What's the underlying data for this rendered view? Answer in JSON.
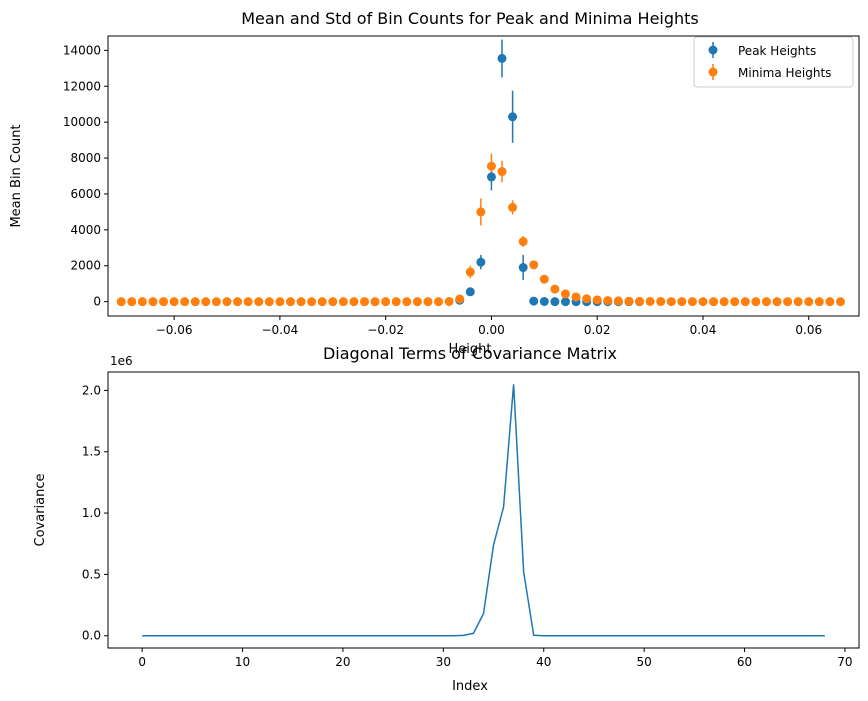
{
  "chart_data": [
    {
      "type": "scatter",
      "title": "Mean and Std of Bin Counts for Peak and Minima Heights",
      "xlabel": "Height",
      "ylabel": "Mean Bin Count",
      "xlim": [
        -0.0725,
        0.0695
      ],
      "ylim": [
        -800,
        14800
      ],
      "xticks": [
        -0.06,
        -0.04,
        -0.02,
        0.0,
        0.02,
        0.04,
        0.06
      ],
      "xtick_labels": [
        "−0.06",
        "−0.04",
        "−0.02",
        "0.00",
        "0.02",
        "0.04",
        "0.06"
      ],
      "yticks": [
        0,
        2000,
        4000,
        6000,
        8000,
        10000,
        12000,
        14000
      ],
      "ytick_labels": [
        "0",
        "2000",
        "4000",
        "6000",
        "8000",
        "10000",
        "12000",
        "14000"
      ],
      "grid": false,
      "legend": "top-right",
      "series": [
        {
          "name": "Peak Heights",
          "color": "#1f77b4",
          "points": [
            {
              "x": -0.006,
              "y": 80,
              "err": 40
            },
            {
              "x": -0.004,
              "y": 550,
              "err": 120
            },
            {
              "x": -0.002,
              "y": 2200,
              "err": 400
            },
            {
              "x": 0.0,
              "y": 6950,
              "err": 750
            },
            {
              "x": 0.002,
              "y": 13550,
              "err": 1050
            },
            {
              "x": 0.004,
              "y": 10300,
              "err": 1450
            },
            {
              "x": 0.006,
              "y": 1900,
              "err": 700
            },
            {
              "x": 0.008,
              "y": 30,
              "err": 30
            },
            {
              "x": 0.01,
              "y": 10,
              "err": 10
            },
            {
              "x": 0.012,
              "y": 0,
              "err": 0
            },
            {
              "x": 0.014,
              "y": 0,
              "err": 0
            },
            {
              "x": 0.016,
              "y": 0,
              "err": 0
            },
            {
              "x": 0.018,
              "y": 0,
              "err": 0
            },
            {
              "x": 0.02,
              "y": 0,
              "err": 0
            },
            {
              "x": 0.022,
              "y": 0,
              "err": 0
            },
            {
              "x": 0.024,
              "y": 0,
              "err": 0
            },
            {
              "x": 0.026,
              "y": 0,
              "err": 0
            },
            {
              "x": 0.028,
              "y": 0,
              "err": 0
            }
          ]
        },
        {
          "name": "Minima Heights",
          "color": "#ff7f0e",
          "points": [
            {
              "x": -0.07,
              "y": 0,
              "err": 0
            },
            {
              "x": -0.068,
              "y": 0,
              "err": 0
            },
            {
              "x": -0.066,
              "y": 0,
              "err": 0
            },
            {
              "x": -0.064,
              "y": 0,
              "err": 0
            },
            {
              "x": -0.062,
              "y": 0,
              "err": 0
            },
            {
              "x": -0.06,
              "y": 0,
              "err": 0
            },
            {
              "x": -0.058,
              "y": 0,
              "err": 0
            },
            {
              "x": -0.056,
              "y": 0,
              "err": 0
            },
            {
              "x": -0.054,
              "y": 0,
              "err": 0
            },
            {
              "x": -0.052,
              "y": 0,
              "err": 0
            },
            {
              "x": -0.05,
              "y": 0,
              "err": 0
            },
            {
              "x": -0.048,
              "y": 0,
              "err": 0
            },
            {
              "x": -0.046,
              "y": 0,
              "err": 0
            },
            {
              "x": -0.044,
              "y": 0,
              "err": 0
            },
            {
              "x": -0.042,
              "y": 0,
              "err": 0
            },
            {
              "x": -0.04,
              "y": 0,
              "err": 0
            },
            {
              "x": -0.038,
              "y": 0,
              "err": 0
            },
            {
              "x": -0.036,
              "y": 0,
              "err": 0
            },
            {
              "x": -0.034,
              "y": 0,
              "err": 0
            },
            {
              "x": -0.032,
              "y": 0,
              "err": 0
            },
            {
              "x": -0.03,
              "y": 0,
              "err": 0
            },
            {
              "x": -0.028,
              "y": 0,
              "err": 0
            },
            {
              "x": -0.026,
              "y": 0,
              "err": 0
            },
            {
              "x": -0.024,
              "y": 0,
              "err": 0
            },
            {
              "x": -0.022,
              "y": 0,
              "err": 0
            },
            {
              "x": -0.02,
              "y": 0,
              "err": 0
            },
            {
              "x": -0.018,
              "y": 0,
              "err": 0
            },
            {
              "x": -0.016,
              "y": 0,
              "err": 0
            },
            {
              "x": -0.014,
              "y": 0,
              "err": 0
            },
            {
              "x": -0.012,
              "y": 0,
              "err": 0
            },
            {
              "x": -0.01,
              "y": 0,
              "err": 0
            },
            {
              "x": -0.008,
              "y": 10,
              "err": 10
            },
            {
              "x": -0.006,
              "y": 150,
              "err": 80
            },
            {
              "x": -0.004,
              "y": 1650,
              "err": 350
            },
            {
              "x": -0.002,
              "y": 5000,
              "err": 750
            },
            {
              "x": 0.0,
              "y": 7550,
              "err": 700
            },
            {
              "x": 0.002,
              "y": 7250,
              "err": 600
            },
            {
              "x": 0.004,
              "y": 5250,
              "err": 400
            },
            {
              "x": 0.006,
              "y": 3350,
              "err": 300
            },
            {
              "x": 0.008,
              "y": 2050,
              "err": 200
            },
            {
              "x": 0.01,
              "y": 1250,
              "err": 150
            },
            {
              "x": 0.012,
              "y": 700,
              "err": 100
            },
            {
              "x": 0.014,
              "y": 430,
              "err": 80
            },
            {
              "x": 0.016,
              "y": 260,
              "err": 60
            },
            {
              "x": 0.018,
              "y": 160,
              "err": 40
            },
            {
              "x": 0.02,
              "y": 100,
              "err": 30
            },
            {
              "x": 0.022,
              "y": 60,
              "err": 20
            },
            {
              "x": 0.024,
              "y": 40,
              "err": 15
            },
            {
              "x": 0.026,
              "y": 25,
              "err": 10
            },
            {
              "x": 0.028,
              "y": 15,
              "err": 8
            },
            {
              "x": 0.03,
              "y": 10,
              "err": 5
            },
            {
              "x": 0.032,
              "y": 5,
              "err": 3
            },
            {
              "x": 0.034,
              "y": 3,
              "err": 2
            },
            {
              "x": 0.036,
              "y": 2,
              "err": 1
            },
            {
              "x": 0.038,
              "y": 1,
              "err": 1
            },
            {
              "x": 0.04,
              "y": 1,
              "err": 0
            },
            {
              "x": 0.042,
              "y": 0,
              "err": 0
            },
            {
              "x": 0.044,
              "y": 0,
              "err": 0
            },
            {
              "x": 0.046,
              "y": 0,
              "err": 0
            },
            {
              "x": 0.048,
              "y": 0,
              "err": 0
            },
            {
              "x": 0.05,
              "y": 0,
              "err": 0
            },
            {
              "x": 0.052,
              "y": 0,
              "err": 0
            },
            {
              "x": 0.054,
              "y": 0,
              "err": 0
            },
            {
              "x": 0.056,
              "y": 0,
              "err": 0
            },
            {
              "x": 0.058,
              "y": 0,
              "err": 0
            },
            {
              "x": 0.06,
              "y": 0,
              "err": 0
            },
            {
              "x": 0.062,
              "y": 0,
              "err": 0
            },
            {
              "x": 0.064,
              "y": 0,
              "err": 0
            },
            {
              "x": 0.066,
              "y": 0,
              "err": 0
            }
          ]
        }
      ]
    },
    {
      "type": "line",
      "title": "Diagonal Terms of Covariance Matrix",
      "xlabel": "Index",
      "ylabel": "Covariance",
      "offset_label": "1e6",
      "xlim": [
        -3.4,
        71.4
      ],
      "ylim": [
        -0.1,
        2.15
      ],
      "xticks": [
        0,
        10,
        20,
        30,
        40,
        50,
        60,
        70
      ],
      "xtick_labels": [
        "0",
        "10",
        "20",
        "30",
        "40",
        "50",
        "60",
        "70"
      ],
      "yticks": [
        0.0,
        0.5,
        1.0,
        1.5,
        2.0
      ],
      "ytick_labels": [
        "0.0",
        "0.5",
        "1.0",
        "1.5",
        "2.0"
      ],
      "grid": false,
      "series": [
        {
          "color": "#1f77b4",
          "x": [
            0,
            1,
            2,
            3,
            4,
            5,
            6,
            7,
            8,
            9,
            10,
            11,
            12,
            13,
            14,
            15,
            16,
            17,
            18,
            19,
            20,
            21,
            22,
            23,
            24,
            25,
            26,
            27,
            28,
            29,
            30,
            31,
            32,
            33,
            34,
            35,
            36,
            37,
            38,
            39,
            40,
            41,
            42,
            43,
            44,
            45,
            46,
            47,
            48,
            49,
            50,
            51,
            52,
            53,
            54,
            55,
            56,
            57,
            58,
            59,
            60,
            61,
            62,
            63,
            64,
            65,
            66,
            67,
            68
          ],
          "y": [
            0,
            0,
            0,
            0,
            0,
            0,
            0,
            0,
            0,
            0,
            0,
            0,
            0,
            0,
            0,
            0,
            0,
            0,
            0,
            0,
            0,
            0,
            0,
            0,
            0,
            0,
            0,
            0,
            0,
            0,
            0,
            0,
            0.003,
            0.02,
            0.18,
            0.74,
            1.05,
            2.05,
            0.52,
            0.004,
            0,
            0,
            0,
            0,
            0,
            0,
            0,
            0,
            0,
            0,
            0,
            0,
            0,
            0,
            0,
            0,
            0,
            0,
            0,
            0,
            0,
            0,
            0,
            0,
            0,
            0,
            0,
            0,
            0
          ]
        }
      ]
    }
  ]
}
